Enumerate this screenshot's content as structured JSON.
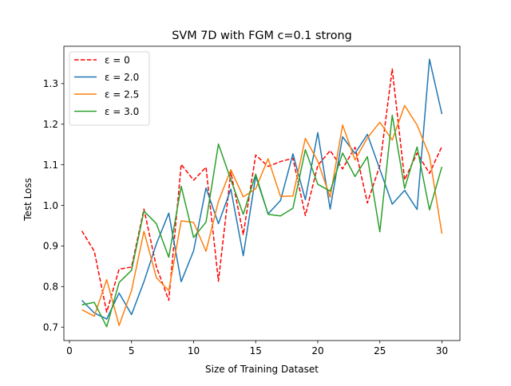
{
  "chart_data": {
    "type": "line",
    "title": "SVM 7D with FGM c=0.1 strong",
    "xlabel": "Size of Training Dataset",
    "ylabel": "Test Loss",
    "xlim": [
      -0.45,
      31.45
    ],
    "ylim": [
      0.667,
      1.392
    ],
    "xticks": [
      0,
      5,
      10,
      15,
      20,
      25,
      30
    ],
    "yticks": [
      0.7,
      0.8,
      0.9,
      1.0,
      1.1,
      1.2,
      1.3
    ],
    "x": [
      1,
      2,
      3,
      4,
      5,
      6,
      7,
      8,
      9,
      10,
      11,
      12,
      13,
      14,
      15,
      16,
      17,
      18,
      19,
      20,
      21,
      22,
      23,
      24,
      25,
      26,
      27,
      28,
      29,
      30
    ],
    "grid": false,
    "legend_position": "upper left",
    "series": [
      {
        "name": "ε = 0",
        "color": "#ff0000",
        "style": "dashed",
        "values": [
          0.937,
          0.887,
          0.737,
          0.843,
          0.848,
          0.991,
          0.849,
          0.766,
          1.101,
          1.062,
          1.094,
          0.813,
          1.082,
          0.928,
          1.124,
          1.096,
          1.108,
          1.116,
          0.975,
          1.098,
          1.135,
          1.09,
          1.143,
          1.006,
          1.098,
          1.336,
          1.063,
          1.129,
          1.079,
          1.145
        ]
      },
      {
        "name": "ε = 2.0",
        "color": "#1f77b4",
        "style": "solid",
        "values": [
          0.766,
          0.735,
          0.72,
          0.784,
          0.731,
          0.812,
          0.905,
          0.981,
          0.812,
          0.888,
          1.043,
          0.955,
          1.04,
          0.876,
          1.072,
          0.979,
          1.012,
          1.127,
          1.014,
          1.179,
          0.991,
          1.169,
          1.128,
          1.175,
          1.089,
          1.003,
          1.037,
          0.99,
          1.36,
          1.225
        ]
      },
      {
        "name": "ε = 2.5",
        "color": "#ff7f0e",
        "style": "solid",
        "values": [
          0.743,
          0.727,
          0.817,
          0.704,
          0.79,
          0.936,
          0.822,
          0.79,
          0.962,
          0.958,
          0.887,
          1.01,
          1.088,
          1.021,
          1.041,
          1.115,
          1.022,
          1.023,
          1.165,
          1.109,
          1.02,
          1.198,
          1.112,
          1.166,
          1.205,
          1.161,
          1.246,
          1.198,
          1.122,
          0.93
        ]
      },
      {
        "name": "ε = 3.0",
        "color": "#2ca02c",
        "style": "solid",
        "values": [
          0.755,
          0.761,
          0.701,
          0.81,
          0.84,
          0.986,
          0.955,
          0.872,
          1.047,
          0.921,
          0.959,
          1.151,
          1.063,
          0.978,
          1.077,
          0.978,
          0.974,
          0.993,
          1.137,
          1.052,
          1.035,
          1.129,
          1.071,
          1.12,
          0.935,
          1.222,
          1.042,
          1.144,
          0.989,
          1.095
        ]
      }
    ]
  }
}
